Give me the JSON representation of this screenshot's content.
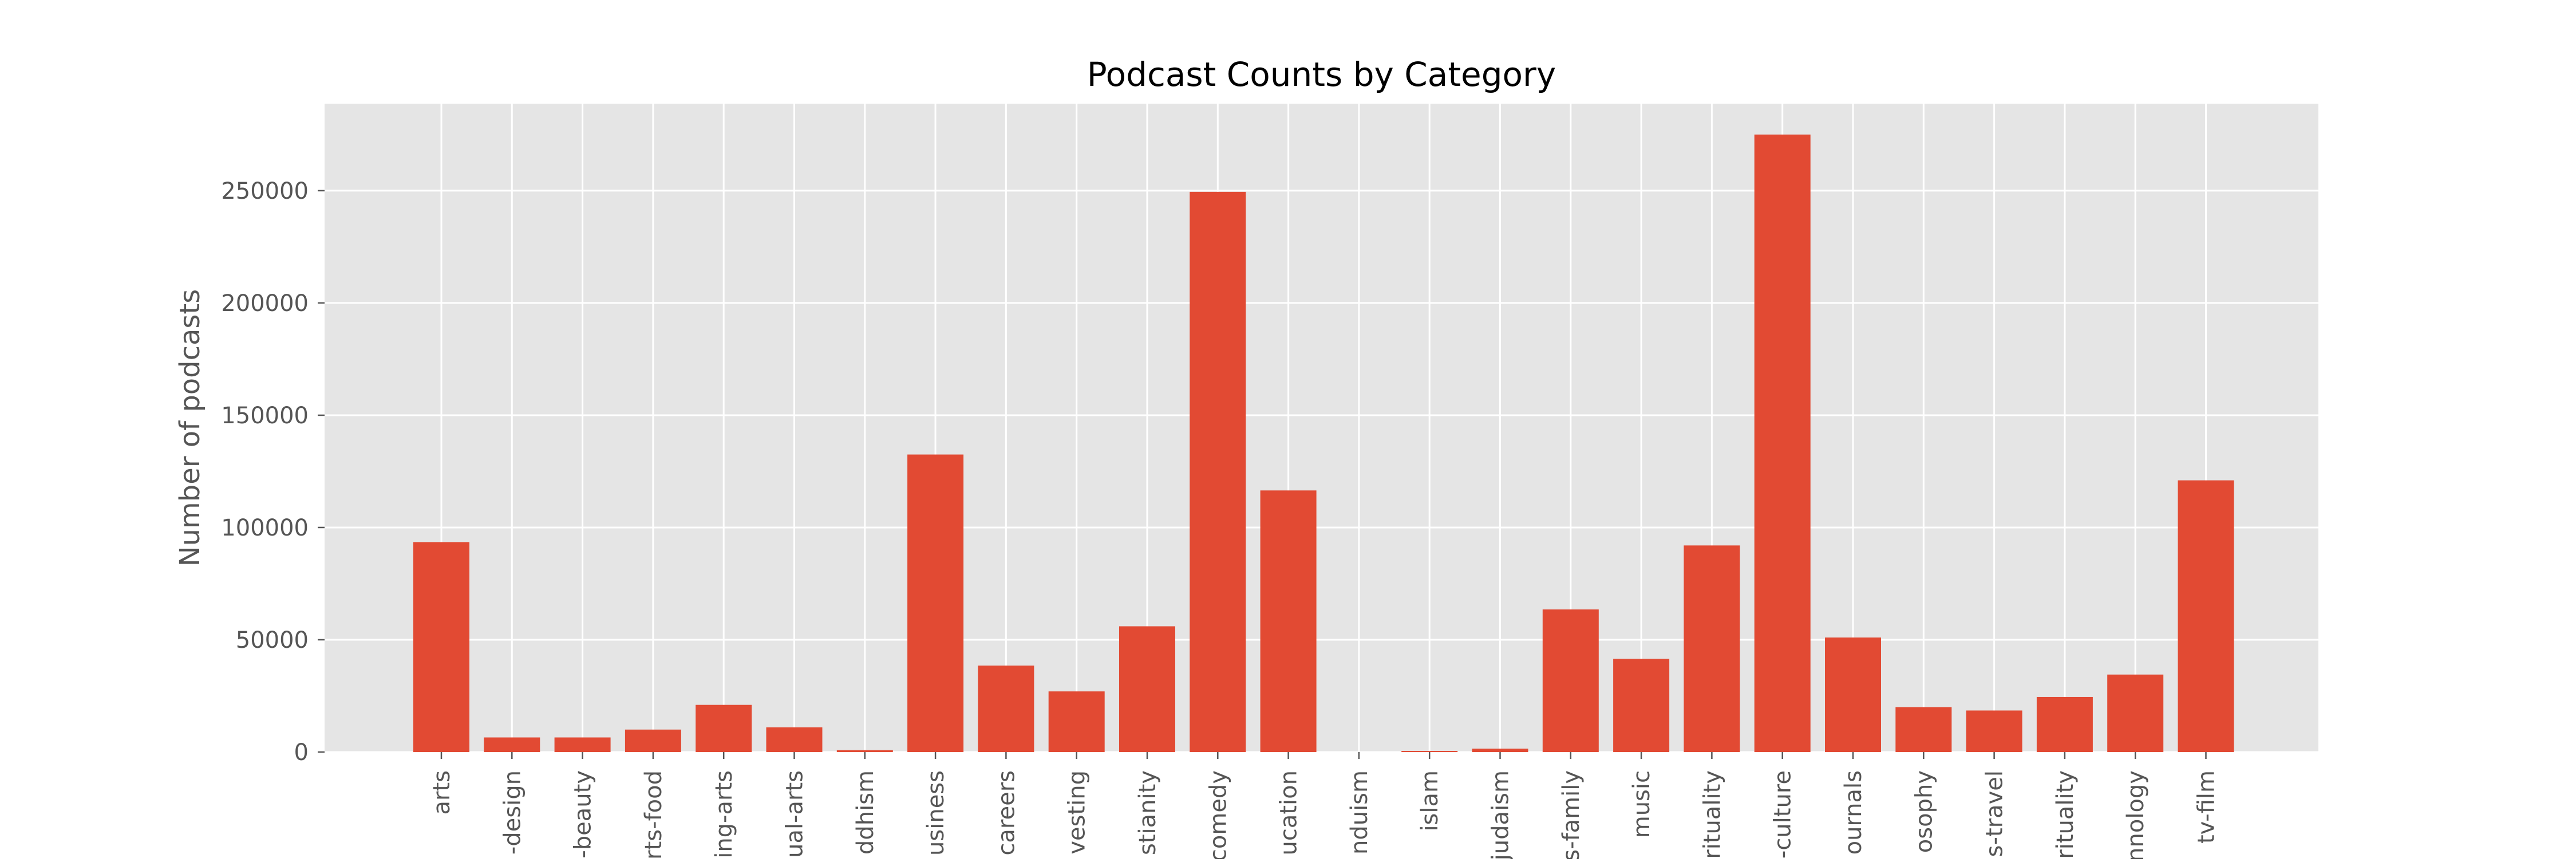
{
  "chart_data": {
    "type": "bar",
    "title": "Podcast Counts by Category",
    "xlabel": "",
    "ylabel": "Number of podcasts",
    "categories": [
      "arts",
      "-design",
      "-beauty",
      "rts-food",
      "ing-arts",
      "ual-arts",
      "ddhism",
      "usiness",
      "careers",
      "vesting",
      "stianity",
      "comedy",
      "ucation",
      "nduism",
      "islam",
      "judaism",
      "s-family",
      "music",
      "rituality",
      "-culture",
      "ournals",
      "osophy",
      "s-travel",
      "rituality",
      "nnology",
      "tv-film"
    ],
    "values": [
      93500,
      6500,
      6500,
      10000,
      21000,
      11000,
      800,
      132500,
      38500,
      27000,
      56000,
      249500,
      116500,
      0,
      500,
      1500,
      63500,
      41500,
      92000,
      275000,
      51000,
      20000,
      18500,
      24500,
      34500,
      121000
    ],
    "yticks": [
      0,
      50000,
      100000,
      150000,
      200000,
      250000
    ],
    "ytick_labels": [
      "0",
      "50000",
      "100000",
      "150000",
      "200000",
      "250000"
    ],
    "ylim": [
      0,
      288750
    ],
    "grid": true,
    "colors": {
      "bar": "#E24A33",
      "plot_background": "#E5E5E5",
      "grid": "#FFFFFF",
      "text": "#000000",
      "tick_label": "#555555"
    }
  }
}
